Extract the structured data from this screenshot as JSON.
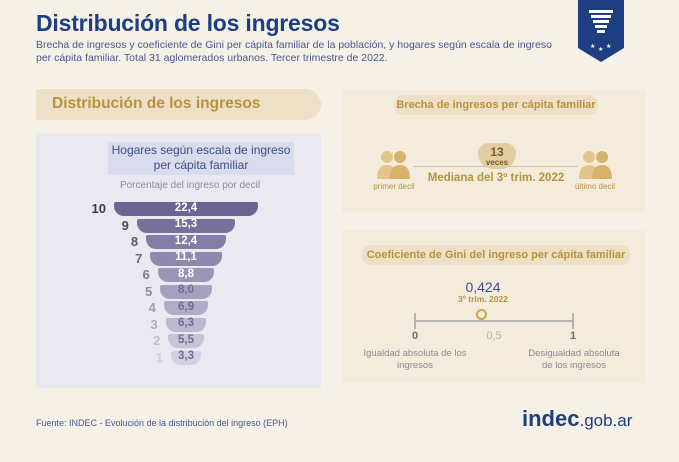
{
  "header": {
    "title": "Distribución de los ingresos",
    "subtitle": "Brecha de ingresos y coeficiente de Gini per cápita familiar de la población, y hogares según escala de ingreso per cápita familiar. Total 31 aglomerados urbanos. Tercer trimestre de 2022."
  },
  "left": {
    "banner": "Distribución de los ingresos",
    "box_title": "Hogares según escala de ingreso per cápita familiar",
    "axis_note": "Porcentaje del ingreso por decil"
  },
  "chart_data": {
    "type": "bar",
    "categories": [
      "10",
      "9",
      "8",
      "7",
      "6",
      "5",
      "4",
      "3",
      "2",
      "1"
    ],
    "values": [
      22.4,
      15.3,
      12.4,
      11.1,
      8.8,
      8.0,
      6.9,
      6.3,
      5.5,
      3.3
    ],
    "value_labels": [
      "22,4",
      "15,3",
      "12,4",
      "11,1",
      "8,8",
      "8,0",
      "6,9",
      "6,3",
      "5,5",
      "3,3"
    ],
    "title": "Hogares según escala de ingreso per cápita familiar",
    "ylabel": "Porcentaje del ingreso por decil"
  },
  "brecha": {
    "title": "Brecha de ingresos per cápita familiar",
    "value": "13",
    "unit": "veces",
    "median_label": "Mediana del 3º trim. 2022",
    "left_label": "primer decil",
    "right_label": "último decil"
  },
  "gini": {
    "title": "Coeficiente de Gini del ingreso per cápita familiar",
    "value": "0,424",
    "value_num": 0.424,
    "period": "3º trim. 2022",
    "scale_min": "0",
    "scale_mid": "0,5",
    "scale_max": "1",
    "min_desc": "Igualdad absoluta de los ingresos",
    "max_desc": "Desigualdad absoluta de los ingresos"
  },
  "footer": {
    "source": "Fuente: INDEC - Evolución de la distribución del ingreso (EPH)",
    "logo_main": "indec",
    "logo_suffix": ".gob.ar"
  },
  "colors": {
    "navy": "#1e3e82",
    "gold": "#b8913c",
    "bar_top": "#6a6592",
    "bar_bottom": "#d2d0e2"
  }
}
